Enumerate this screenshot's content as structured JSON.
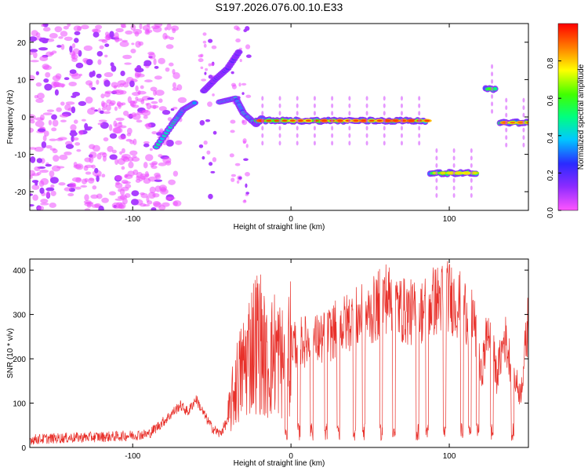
{
  "title": "S197.2026.076.00.10.E33",
  "colors": {
    "snr_line": "#e8302a",
    "low_amp": "#c7a6ff",
    "mid_amp": "#6a1cff",
    "frame": "#000000"
  },
  "chart_data": [
    {
      "type": "heatmap",
      "panel": "spectrogram",
      "xlabel": "Height of straight line (km)",
      "ylabel": "Frequency (Hz)",
      "xlim": [
        -165,
        150
      ],
      "ylim": [
        -25,
        25
      ],
      "xticks": [
        -100,
        0,
        100
      ],
      "xtick_labels": [
        "-100",
        "0",
        "100"
      ],
      "yticks": [
        -20,
        -10,
        0,
        10,
        20
      ],
      "ytick_labels": [
        "-20",
        "-10",
        "0",
        "10",
        "20"
      ],
      "colorbar": {
        "label": "Normalized spectral amplitude",
        "range": [
          0,
          1
        ],
        "ticks": [
          0.0,
          0.2,
          0.4,
          0.6,
          0.8
        ],
        "tick_labels": [
          "0.0",
          "0.2",
          "0.4",
          "0.6",
          "0.8"
        ],
        "colormap": "rainbow (magenta-blue-cyan-green-yellow-red)"
      },
      "features": [
        {
          "name": "noise-field-left",
          "x_range": [
            -165,
            -85
          ],
          "freq_range": [
            -25,
            25
          ],
          "amplitude": 0.05
        },
        {
          "name": "rising-track-1",
          "points": [
            [
              -85,
              -8
            ],
            [
              -75,
              -2
            ],
            [
              -68,
              2
            ],
            [
              -60,
              4
            ]
          ],
          "amplitude": 0.5
        },
        {
          "name": "rising-track-2",
          "points": [
            [
              -55,
              7
            ],
            [
              -48,
              10
            ],
            [
              -40,
              13
            ],
            [
              -32,
              18
            ]
          ],
          "amplitude": 0.2
        },
        {
          "name": "rising-track-3",
          "points": [
            [
              -45,
              4
            ],
            [
              -35,
              5
            ],
            [
              -30,
              1
            ],
            [
              -22,
              -2
            ],
            [
              -18,
              0
            ]
          ],
          "amplitude": 0.45
        },
        {
          "name": "steady-track-0hz",
          "x_range": [
            -22,
            86
          ],
          "frequency": -1,
          "amplitude": 0.9
        },
        {
          "name": "steady-track-neg15hz",
          "x_range": [
            88,
            118
          ],
          "frequency": -15,
          "amplitude": 0.75
        },
        {
          "name": "burst-7hz",
          "x_range": [
            123,
            130
          ],
          "frequency": 7.5,
          "amplitude": 0.6
        },
        {
          "name": "steady-track-end",
          "x_range": [
            132,
            150
          ],
          "frequency": -1.5,
          "amplitude": 0.85
        }
      ]
    },
    {
      "type": "line",
      "panel": "snr",
      "xlabel": "Height of straight line (km)",
      "ylabel": "SNR (10 * v/v)",
      "xlim": [
        -165,
        150
      ],
      "ylim": [
        0,
        425
      ],
      "xticks": [
        -100,
        0,
        100
      ],
      "xtick_labels": [
        "-100",
        "0",
        "100"
      ],
      "yticks": [
        0,
        100,
        200,
        300,
        400
      ],
      "ytick_labels": [
        "0",
        "100",
        "200",
        "300",
        "400"
      ],
      "series": [
        {
          "name": "SNR",
          "x": [
            -165,
            -140,
            -110,
            -90,
            -80,
            -70,
            -65,
            -60,
            -55,
            -50,
            -45,
            -40,
            -35,
            -30,
            -25,
            -20,
            -15,
            -10,
            -5,
            0,
            10,
            20,
            30,
            40,
            50,
            60,
            70,
            80,
            90,
            100,
            110,
            115,
            120,
            125,
            130,
            135,
            140,
            145,
            150
          ],
          "y": [
            18,
            22,
            25,
            30,
            60,
            95,
            80,
            110,
            75,
            45,
            30,
            60,
            140,
            180,
            230,
            250,
            180,
            220,
            190,
            235,
            240,
            245,
            270,
            290,
            300,
            340,
            310,
            300,
            330,
            340,
            310,
            300,
            160,
            280,
            160,
            250,
            170,
            120,
            290
          ],
          "dip_positions": [
            -3,
            5,
            13,
            22,
            30,
            40,
            46,
            57,
            65,
            80,
            86,
            97,
            108,
            113,
            118,
            127,
            140
          ]
        }
      ]
    }
  ]
}
